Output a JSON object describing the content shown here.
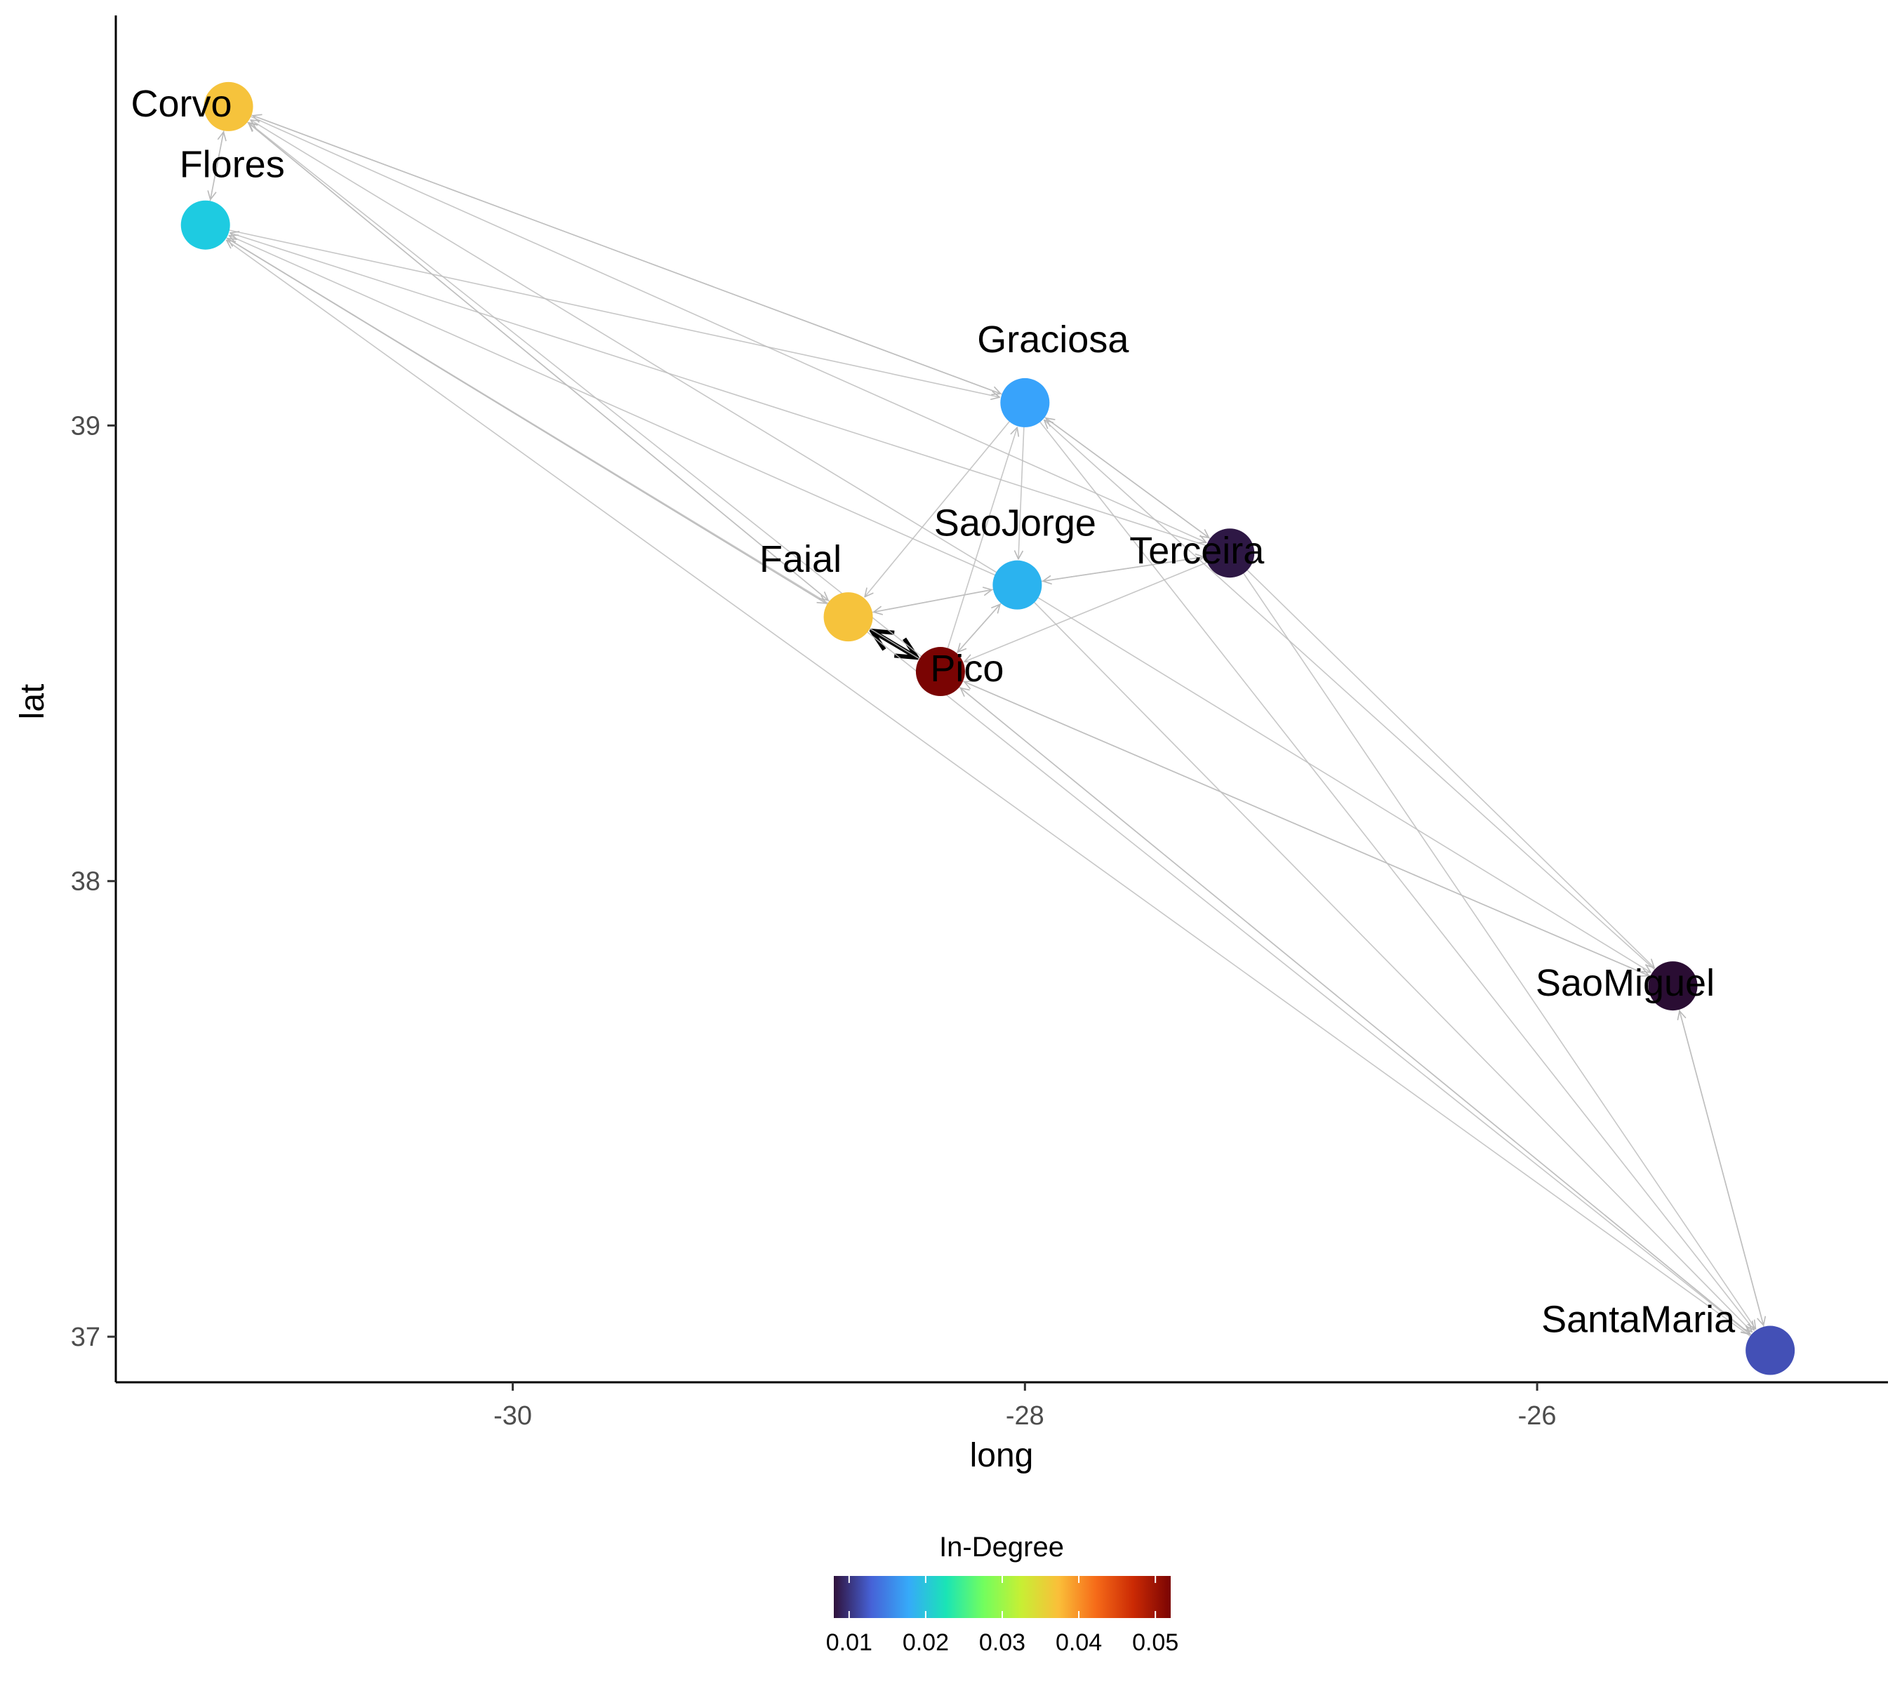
{
  "chart_data": {
    "type": "network",
    "xlabel": "long",
    "ylabel": "lat",
    "xlim": [
      -31.55,
      -24.63
    ],
    "ylim": [
      36.9,
      39.9
    ],
    "x_ticks": [
      -30,
      -28,
      -26
    ],
    "y_ticks": [
      37,
      38,
      39
    ],
    "x_tick_labels": [
      "-30",
      "-28",
      "-26"
    ],
    "y_tick_labels": [
      "37",
      "38",
      "39"
    ],
    "grid": false,
    "legend": {
      "title": "In-Degree",
      "position": "bottom",
      "range": [
        0.008,
        0.052
      ],
      "ticks": [
        0.01,
        0.02,
        0.03,
        0.04,
        0.05
      ],
      "tick_labels": [
        "0.01",
        "0.02",
        "0.03",
        "0.04",
        "0.05"
      ],
      "palette": [
        "#30123b",
        "#4662d7",
        "#36aaf9",
        "#1ae4b6",
        "#72fe5e",
        "#c7ef34",
        "#fabf39",
        "#f66b19",
        "#cb2a04",
        "#7a0403"
      ]
    },
    "nodes": [
      {
        "name": "Corvo",
        "long": -31.11,
        "lat": 39.7,
        "in_degree": 0.038,
        "color": "#f6c33c"
      },
      {
        "name": "Flores",
        "long": -31.2,
        "lat": 39.44,
        "in_degree": 0.022,
        "color": "#1ecbe1"
      },
      {
        "name": "Graciosa",
        "long": -28.0,
        "lat": 39.05,
        "in_degree": 0.016,
        "color": "#38a3fb"
      },
      {
        "name": "Terceira",
        "long": -27.2,
        "lat": 38.72,
        "in_degree": 0.009,
        "color": "#2e1845"
      },
      {
        "name": "SaoJorge",
        "long": -28.03,
        "lat": 38.65,
        "in_degree": 0.017,
        "color": "#2bb3ef"
      },
      {
        "name": "Faial",
        "long": -28.69,
        "lat": 38.58,
        "in_degree": 0.039,
        "color": "#f6c33c"
      },
      {
        "name": "Pico",
        "long": -28.33,
        "lat": 38.46,
        "in_degree": 0.052,
        "color": "#7a0403"
      },
      {
        "name": "SaoMiguel",
        "long": -25.47,
        "lat": 37.77,
        "in_degree": 0.008,
        "color": "#2a0d33"
      },
      {
        "name": "SantaMaria",
        "long": -25.09,
        "lat": 36.97,
        "in_degree": 0.012,
        "color": "#4350b6"
      }
    ],
    "edges": [
      {
        "from": "Faial",
        "to": "Pico",
        "weight": "strong"
      },
      {
        "from": "Pico",
        "to": "Faial",
        "weight": "strong"
      },
      {
        "from": "Corvo",
        "to": "Flores",
        "weight": "weak"
      },
      {
        "from": "Flores",
        "to": "Corvo",
        "weight": "weak"
      },
      {
        "from": "Corvo",
        "to": "Graciosa",
        "weight": "weak"
      },
      {
        "from": "Graciosa",
        "to": "Corvo",
        "weight": "weak"
      },
      {
        "from": "Corvo",
        "to": "Faial",
        "weight": "weak"
      },
      {
        "from": "Faial",
        "to": "Corvo",
        "weight": "weak"
      },
      {
        "from": "Corvo",
        "to": "Terceira",
        "weight": "weak"
      },
      {
        "from": "SaoJorge",
        "to": "Corvo",
        "weight": "weak"
      },
      {
        "from": "Pico",
        "to": "Corvo",
        "weight": "weak"
      },
      {
        "from": "Flores",
        "to": "Graciosa",
        "weight": "weak"
      },
      {
        "from": "Flores",
        "to": "Faial",
        "weight": "weak"
      },
      {
        "from": "Faial",
        "to": "Flores",
        "weight": "weak"
      },
      {
        "from": "Pico",
        "to": "Flores",
        "weight": "weak"
      },
      {
        "from": "SaoJorge",
        "to": "Flores",
        "weight": "weak"
      },
      {
        "from": "Terceira",
        "to": "Flores",
        "weight": "weak"
      },
      {
        "from": "SantaMaria",
        "to": "Flores",
        "weight": "weak"
      },
      {
        "from": "Graciosa",
        "to": "Faial",
        "weight": "weak"
      },
      {
        "from": "Graciosa",
        "to": "SaoJorge",
        "weight": "weak"
      },
      {
        "from": "Graciosa",
        "to": "Terceira",
        "weight": "weak"
      },
      {
        "from": "Terceira",
        "to": "Graciosa",
        "weight": "weak"
      },
      {
        "from": "Pico",
        "to": "Graciosa",
        "weight": "weak"
      },
      {
        "from": "SaoMiguel",
        "to": "Graciosa",
        "weight": "weak"
      },
      {
        "from": "Terceira",
        "to": "SaoJorge",
        "weight": "weak"
      },
      {
        "from": "SaoJorge",
        "to": "Terceira",
        "weight": "weak"
      },
      {
        "from": "Terceira",
        "to": "Pico",
        "weight": "weak"
      },
      {
        "from": "Faial",
        "to": "SaoJorge",
        "weight": "weak"
      },
      {
        "from": "SaoJorge",
        "to": "Faial",
        "weight": "weak"
      },
      {
        "from": "Pico",
        "to": "SaoJorge",
        "weight": "weak"
      },
      {
        "from": "SaoJorge",
        "to": "Pico",
        "weight": "weak"
      },
      {
        "from": "Terceira",
        "to": "SaoMiguel",
        "weight": "weak"
      },
      {
        "from": "SaoMiguel",
        "to": "Pico",
        "weight": "weak"
      },
      {
        "from": "Pico",
        "to": "SaoMiguel",
        "weight": "weak"
      },
      {
        "from": "SaoJorge",
        "to": "SaoMiguel",
        "weight": "weak"
      },
      {
        "from": "SaoMiguel",
        "to": "SantaMaria",
        "weight": "weak"
      },
      {
        "from": "SantaMaria",
        "to": "SaoMiguel",
        "weight": "weak"
      },
      {
        "from": "Pico",
        "to": "SantaMaria",
        "weight": "weak"
      },
      {
        "from": "SantaMaria",
        "to": "Pico",
        "weight": "weak"
      },
      {
        "from": "Faial",
        "to": "SantaMaria",
        "weight": "weak"
      },
      {
        "from": "SaoJorge",
        "to": "SantaMaria",
        "weight": "weak"
      },
      {
        "from": "Terceira",
        "to": "SantaMaria",
        "weight": "weak"
      },
      {
        "from": "Graciosa",
        "to": "SantaMaria",
        "weight": "weak"
      }
    ]
  }
}
